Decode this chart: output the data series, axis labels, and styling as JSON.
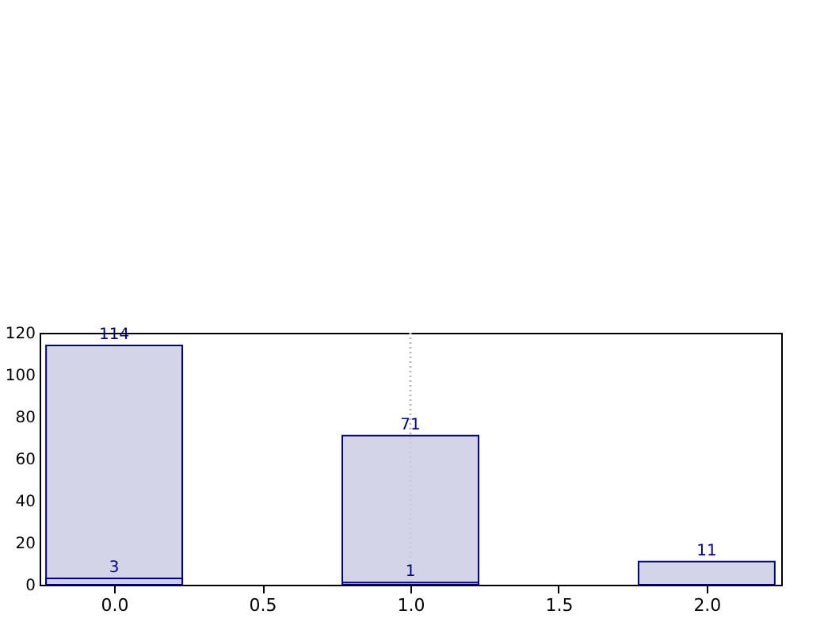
{
  "chart_data": {
    "type": "bar",
    "x": [
      0,
      1,
      2
    ],
    "series": [
      {
        "color": "#cccce5",
        "values": [
          114,
          71,
          11
        ]
      },
      {
        "color": "#cccce5",
        "values": [
          3,
          1,
          null
        ]
      }
    ],
    "xlim": [
      -0.225,
      2.225
    ],
    "xticks": [
      {
        "value": 0,
        "label": "0.0"
      },
      0.5,
      {
        "value": 1,
        "label": "1.0"
      },
      1.5,
      {
        "value": 2,
        "label": "2.0"
      }
    ],
    "ylim": [
      0,
      120
    ],
    "yticks": [
      0,
      20,
      40,
      60,
      80,
      100,
      120
    ],
    "ref_lines": [
      {
        "axis": "x",
        "value": 1,
        "color": "#bbbbbb",
        "line_style": "dotted"
      }
    ],
    "data_labels": true,
    "grid": false
  }
}
